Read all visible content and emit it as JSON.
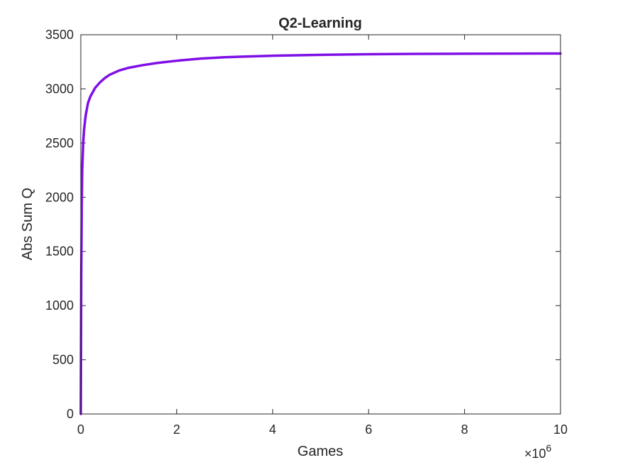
{
  "chart_data": {
    "type": "line",
    "title": "Q2-Learning",
    "xlabel": "Games",
    "ylabel": "Abs Sum Q",
    "x_exponent_label": "×10",
    "x_exponent": "6",
    "xlim": [
      0,
      10
    ],
    "ylim": [
      0,
      3500
    ],
    "x_ticks": [
      0,
      2,
      4,
      6,
      8,
      10
    ],
    "y_ticks": [
      0,
      500,
      1000,
      1500,
      2000,
      2500,
      3000,
      3500
    ],
    "x_tick_labels": [
      "0",
      "2",
      "4",
      "6",
      "8",
      "10"
    ],
    "y_tick_labels": [
      "0",
      "500",
      "1000",
      "1500",
      "2000",
      "2500",
      "3000",
      "3500"
    ],
    "grid": false,
    "series": [
      {
        "color": "#7f0fe6",
        "x": [
          0,
          0.01,
          0.02,
          0.03,
          0.05,
          0.07,
          0.1,
          0.15,
          0.2,
          0.3,
          0.4,
          0.5,
          0.6,
          0.8,
          1.0,
          1.3,
          1.6,
          2.0,
          2.5,
          3.0,
          3.5,
          4.0,
          5.0,
          6.0,
          7.0,
          8.0,
          9.0,
          10.0
        ],
        "y": [
          0,
          1300,
          1900,
          2250,
          2500,
          2630,
          2750,
          2870,
          2930,
          3010,
          3060,
          3100,
          3130,
          3170,
          3195,
          3220,
          3240,
          3260,
          3280,
          3292,
          3300,
          3306,
          3314,
          3320,
          3323,
          3325,
          3326,
          3327
        ]
      }
    ]
  }
}
